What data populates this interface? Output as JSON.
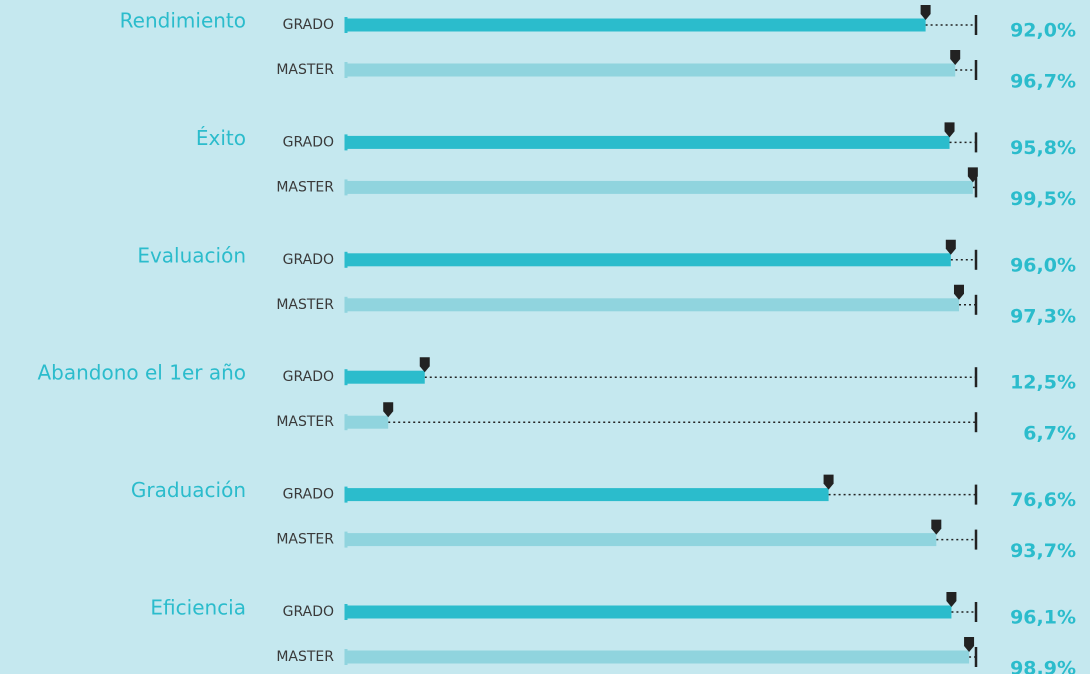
{
  "chart_data": {
    "type": "bar",
    "orientation": "horizontal",
    "categories": [
      "Rendimiento",
      "Éxito",
      "Evaluación",
      "Abandono el 1er año",
      "Graduación",
      "Eficiencia"
    ],
    "xlim": [
      0,
      100
    ],
    "series": [
      {
        "name": "GRADO",
        "color": "#2bbccc",
        "values": [
          92.0,
          95.8,
          96.0,
          12.5,
          76.6,
          96.1
        ],
        "value_labels": [
          "92,0%",
          "95,8%",
          "96,0%",
          "12,5%",
          "76,6%",
          "96,1%"
        ]
      },
      {
        "name": "MASTER",
        "color": "#90d4de",
        "values": [
          96.7,
          99.5,
          97.3,
          6.7,
          93.7,
          98.9
        ],
        "value_labels": [
          "96,7%",
          "99,5%",
          "97,3%",
          "6,7%",
          "93,7%",
          "98,9%"
        ]
      }
    ]
  }
}
